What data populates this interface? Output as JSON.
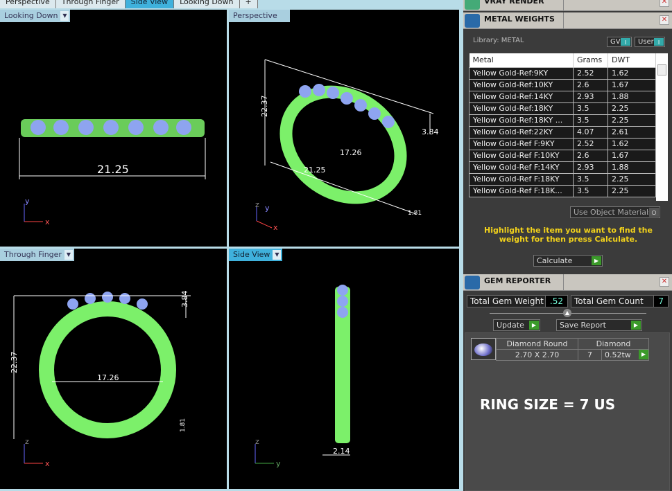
{
  "tabs": [
    "Perspective",
    "Through Finger",
    "Side View",
    "Looking Down",
    "+"
  ],
  "active_tab": "Side View",
  "viewports": {
    "top_left": {
      "label": "Looking Down",
      "dims": [
        "21.25"
      ],
      "axes": [
        "y",
        "x"
      ]
    },
    "top_right": {
      "label": "Perspective",
      "dims": [
        "22.37",
        "3.84",
        "17.26",
        "21.25",
        "1.81"
      ],
      "axes": [
        "z",
        "y",
        "x"
      ]
    },
    "bottom_left": {
      "label": "Through Finger",
      "dims": [
        "22.37",
        "3.84",
        "17.26",
        "1.81"
      ],
      "axes": [
        "z",
        "x"
      ]
    },
    "bottom_right": {
      "label": "Side View",
      "dims": [
        "2.14"
      ],
      "axes": [
        "z",
        "y"
      ]
    }
  },
  "colors": {
    "ring": "#7cf06a",
    "gems": "#8ea4f0",
    "dims": "#ffffff",
    "accent": "#3fb1dc",
    "hint": "#f2d21b"
  },
  "vray": {
    "title": "VRAY RENDER"
  },
  "metal_weights": {
    "title": "METAL WEIGHTS",
    "library": "Library: METAL",
    "gv": "GV",
    "user": "User",
    "headers": [
      "Metal",
      "Grams",
      "DWT"
    ],
    "rows": [
      [
        "Yellow Gold-Ref:9KY",
        "2.52",
        "1.62"
      ],
      [
        "Yellow Gold-Ref:10KY",
        "2.6",
        "1.67"
      ],
      [
        "Yellow Gold-Ref:14KY",
        "2.93",
        "1.88"
      ],
      [
        "Yellow Gold-Ref:18KY",
        "3.5",
        "2.25"
      ],
      [
        "Yellow Gold-Ref:18KY ...",
        "3.5",
        "2.25"
      ],
      [
        "Yellow Gold-Ref:22KY",
        "4.07",
        "2.61"
      ],
      [
        "Yellow Gold-Ref F:9KY",
        "2.52",
        "1.62"
      ],
      [
        "Yellow Gold-Ref F:10KY",
        "2.6",
        "1.67"
      ],
      [
        "Yellow Gold-Ref F:14KY",
        "2.93",
        "1.88"
      ],
      [
        "Yellow Gold-Ref F:18KY",
        "3.5",
        "2.25"
      ],
      [
        "Yellow Gold-Ref F:18K...",
        "3.5",
        "2.25"
      ]
    ],
    "use_object_materials": "Use Object Materials",
    "hint": "Highlight the item you want to find the weight for then press Calculate.",
    "calculate": "Calculate"
  },
  "gem_reporter": {
    "title": "GEM REPORTER",
    "total_weight_label": "Total Gem Weight",
    "total_weight": ".52",
    "total_count_label": "Total Gem Count",
    "total_count": "7",
    "update": "Update",
    "save_report": "Save Report",
    "gem": {
      "shape": "Diamond Round",
      "material": "Diamond",
      "size": "2.70 X 2.70",
      "count": "7",
      "weight": "0.52tw"
    }
  },
  "ring_size": "RING SIZE = 7 US"
}
